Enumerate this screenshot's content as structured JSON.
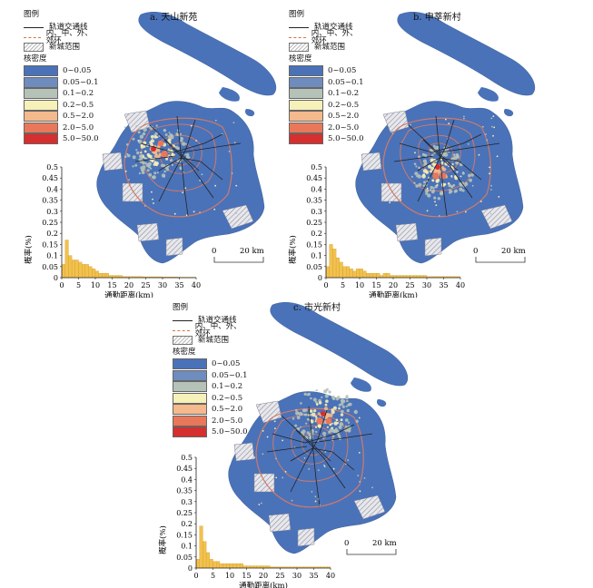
{
  "legend": {
    "heading": "图例",
    "rail_label": "轨道交通线",
    "ring_label": "内、中、外、郊环",
    "newtown_label": "新城范围",
    "density_heading": "核密度",
    "density_classes": [
      {
        "label": "0~0.05",
        "color": "#4a72b8"
      },
      {
        "label": "0.05~0.1",
        "color": "#6f8cbf"
      },
      {
        "label": "0.1~0.2",
        "color": "#b5c2b8"
      },
      {
        "label": "0.2~0.5",
        "color": "#f6f0b9"
      },
      {
        "label": "0.5~2.0",
        "color": "#f4b98c"
      },
      {
        "label": "2.0~5.0",
        "color": "#e9775a"
      },
      {
        "label": "5.0~50.0",
        "color": "#d52f2f"
      }
    ]
  },
  "panels": [
    {
      "title": "a. 天山新苑",
      "hotspot": "west"
    },
    {
      "title": "b. 申莘新村",
      "hotspot": "south"
    },
    {
      "title": "c. 市光新村",
      "hotspot": "north"
    }
  ],
  "scalebar": {
    "zero": "0",
    "label": "20 km"
  },
  "colors": {
    "land": "#4a72b8",
    "ring": "#d07a6a",
    "rail": "#222222",
    "bar": "#f2c14e",
    "bar_edge": "#c9951e"
  },
  "chart_data": [
    {
      "type": "bar",
      "title": "",
      "xlabel": "通勤距离(km)",
      "ylabel": "概率(%)",
      "ylim": [
        0,
        0.5
      ],
      "xlim": [
        0,
        40
      ],
      "yticks": [
        "0",
        "0.05",
        "0.1",
        "0.15",
        "0.2",
        "0.25",
        "0.3",
        "0.35",
        "0.4",
        "0.45",
        "0.5"
      ],
      "xticks": [
        "0",
        "5",
        "10",
        "15",
        "20",
        "25",
        "30",
        "35",
        "40"
      ],
      "x": [
        0.5,
        1.5,
        2.5,
        3.5,
        4.5,
        5.5,
        6.5,
        7.5,
        8.5,
        9.5,
        10.5,
        11.5,
        12.5,
        13.5,
        14.5,
        15.5,
        16.5,
        17.5,
        18.5,
        19.5,
        20.5,
        21.5,
        22.5,
        23.5,
        24.5,
        25.5,
        26.5,
        27.5,
        28.5,
        29.5,
        30.5,
        31.5,
        32.5,
        33.5,
        34.5,
        35.5,
        36.5,
        37.5,
        38.5,
        39.5
      ],
      "values": [
        0.06,
        0.17,
        0.1,
        0.08,
        0.08,
        0.07,
        0.06,
        0.06,
        0.05,
        0.04,
        0.03,
        0.02,
        0.02,
        0.02,
        0.01,
        0.01,
        0.01,
        0.01,
        0.005,
        0.005,
        0.005,
        0.005,
        0.005,
        0.005,
        0.004,
        0.004,
        0.004,
        0.004,
        0.004,
        0.004,
        0.003,
        0.003,
        0.003,
        0.003,
        0.003,
        0.002,
        0.002,
        0.002,
        0.002,
        0.002
      ]
    },
    {
      "type": "bar",
      "title": "",
      "xlabel": "通勤距离(km)",
      "ylabel": "概率(%)",
      "ylim": [
        0,
        0.5
      ],
      "xlim": [
        0,
        40
      ],
      "yticks": [
        "0",
        "0.05",
        "0.1",
        "0.15",
        "0.2",
        "0.25",
        "0.3",
        "0.35",
        "0.4",
        "0.45",
        "0.5"
      ],
      "xticks": [
        "0",
        "5",
        "10",
        "15",
        "20",
        "25",
        "30",
        "35",
        "40"
      ],
      "x": [
        0.5,
        1.5,
        2.5,
        3.5,
        4.5,
        5.5,
        6.5,
        7.5,
        8.5,
        9.5,
        10.5,
        11.5,
        12.5,
        13.5,
        14.5,
        15.5,
        16.5,
        17.5,
        18.5,
        19.5,
        20.5,
        21.5,
        22.5,
        23.5,
        24.5,
        25.5,
        26.5,
        27.5,
        28.5,
        29.5,
        30.5,
        31.5,
        32.5,
        33.5,
        34.5,
        35.5,
        36.5,
        37.5,
        38.5,
        39.5
      ],
      "values": [
        0.05,
        0.15,
        0.13,
        0.09,
        0.07,
        0.05,
        0.05,
        0.04,
        0.03,
        0.04,
        0.04,
        0.03,
        0.02,
        0.02,
        0.02,
        0.02,
        0.01,
        0.02,
        0.02,
        0.01,
        0.01,
        0.01,
        0.01,
        0.01,
        0.01,
        0.01,
        0.01,
        0.01,
        0.01,
        0.01,
        0.005,
        0.005,
        0.005,
        0.005,
        0.005,
        0.005,
        0.005,
        0.005,
        0.005,
        0.005
      ]
    },
    {
      "type": "bar",
      "title": "",
      "xlabel": "通勤距离(km)",
      "ylabel": "概率(%)",
      "ylim": [
        0,
        0.5
      ],
      "xlim": [
        0,
        40
      ],
      "yticks": [
        "0",
        "0.05",
        "0.1",
        "0.15",
        "0.2",
        "0.25",
        "0.3",
        "0.35",
        "0.4",
        "0.45",
        "0.5"
      ],
      "xticks": [
        "0",
        "5",
        "10",
        "15",
        "20",
        "25",
        "30",
        "35",
        "40"
      ],
      "x": [
        0.5,
        1.5,
        2.5,
        3.5,
        4.5,
        5.5,
        6.5,
        7.5,
        8.5,
        9.5,
        10.5,
        11.5,
        12.5,
        13.5,
        14.5,
        15.5,
        16.5,
        17.5,
        18.5,
        19.5,
        20.5,
        21.5,
        22.5,
        23.5,
        24.5,
        25.5,
        26.5,
        27.5,
        28.5,
        29.5,
        30.5,
        31.5,
        32.5,
        33.5,
        34.5,
        35.5,
        36.5,
        37.5,
        38.5,
        39.5
      ],
      "values": [
        0.04,
        0.19,
        0.12,
        0.07,
        0.04,
        0.03,
        0.03,
        0.02,
        0.02,
        0.02,
        0.02,
        0.02,
        0.02,
        0.02,
        0.01,
        0.01,
        0.01,
        0.01,
        0.01,
        0.01,
        0.01,
        0.01,
        0.005,
        0.005,
        0.005,
        0.005,
        0.005,
        0.005,
        0.005,
        0.005,
        0.005,
        0.005,
        0.005,
        0.005,
        0.005,
        0.005,
        0.005,
        0.005,
        0.005,
        0.005
      ]
    }
  ]
}
